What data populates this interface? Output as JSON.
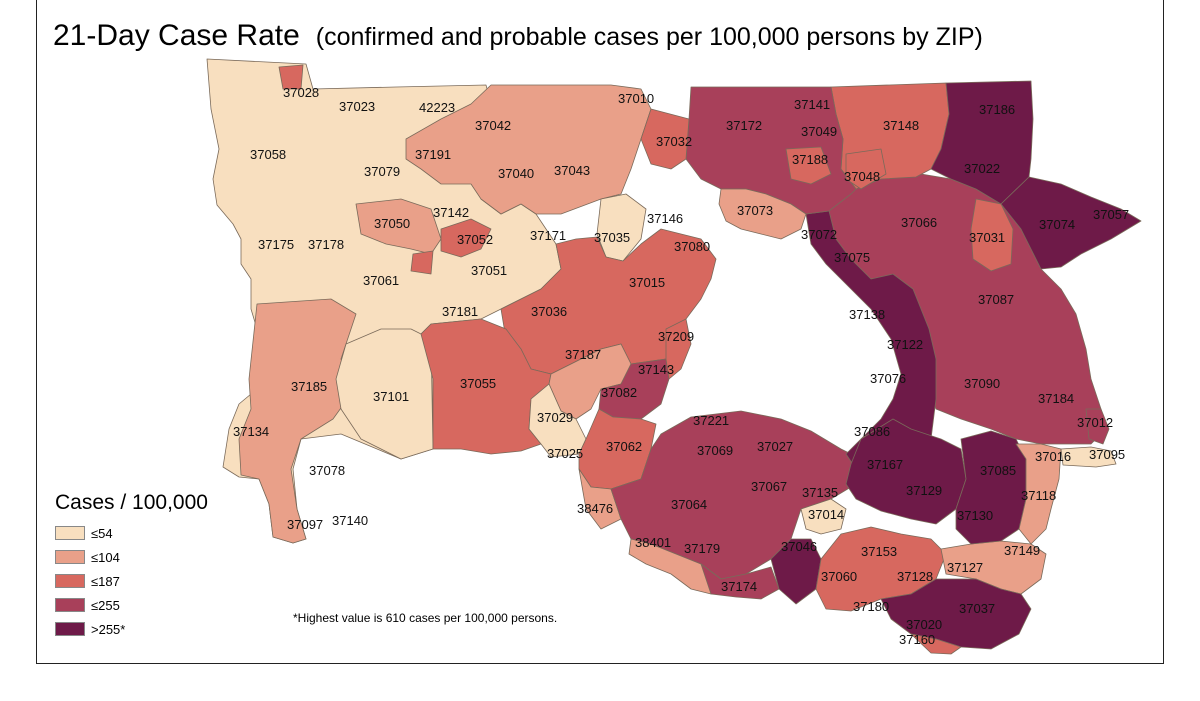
{
  "title": "21-Day Case Rate",
  "subtitle": "(confirmed and probable cases per 100,000 persons by ZIP)",
  "legend": {
    "title": "Cases / 100,000",
    "classes": [
      {
        "label": "≤54",
        "color": "#f8dfbf"
      },
      {
        "label": "≤104",
        "color": "#e9a089"
      },
      {
        "label": "≤187",
        "color": "#d7685f"
      },
      {
        "label": "≤255",
        "color": "#a8405a"
      },
      {
        "label": ">255*",
        "color": "#6e1a48"
      }
    ]
  },
  "footnote": "*Highest value is 610 cases per 100,000 persons.",
  "zip_labels": [
    "37028",
    "37023",
    "42223",
    "37010",
    "37141",
    "37186",
    "37042",
    "37172",
    "37049",
    "37148",
    "37058",
    "37032",
    "37191",
    "37188",
    "37022",
    "37079",
    "37040",
    "37043",
    "37048",
    "37142",
    "37146",
    "37073",
    "37050",
    "37052",
    "37171",
    "37035",
    "37072",
    "37066",
    "37057",
    "37175",
    "37178",
    "37080",
    "37074",
    "37031",
    "37075",
    "37051",
    "37061",
    "37015",
    "37087",
    "37181",
    "37036",
    "37138",
    "37209",
    "37122",
    "37187",
    "37143",
    "37076",
    "37090",
    "37185",
    "37101",
    "37055",
    "37082",
    "37184",
    "37029",
    "37221",
    "37012",
    "37134",
    "37086",
    "37062",
    "37069",
    "37027",
    "37016",
    "37095",
    "37025",
    "37167",
    "37085",
    "37078",
    "37067",
    "37135",
    "37129",
    "37118",
    "38476",
    "37064",
    "37014",
    "37130",
    "37097",
    "37140",
    "38401",
    "37179",
    "37046",
    "37153",
    "37149",
    "37060",
    "37128",
    "37127",
    "37174",
    "37180",
    "37037",
    "37020",
    "37160"
  ]
}
